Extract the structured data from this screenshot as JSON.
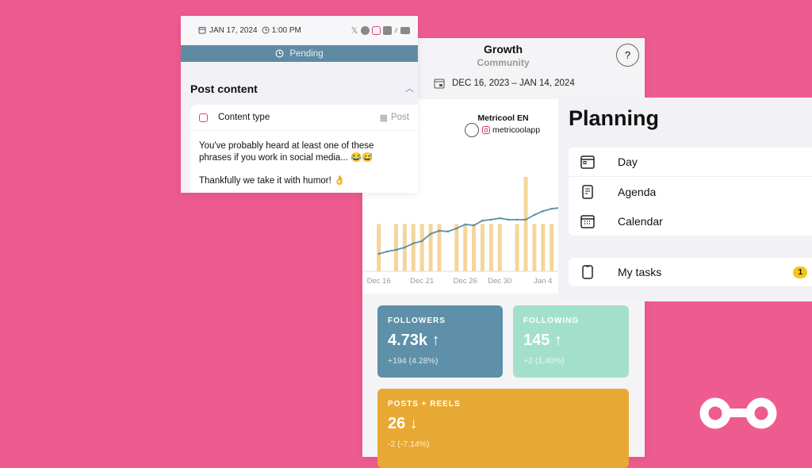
{
  "post": {
    "date": "JAN 17, 2024",
    "time": "1:00 PM",
    "networks": [
      "x-icon",
      "facebook-icon",
      "instagram-icon",
      "linkedin-icon",
      "tiktok-icon",
      "youtube-icon"
    ],
    "status": "Pending",
    "section_title": "Post content",
    "content_type_label": "Content type",
    "content_type_value": "Post",
    "text_line1": "You've probably heard at least one of these",
    "text_line2": "phrases if you work in social media... 😂😅",
    "text_line3": "Thankfully we take it with humor! 👌"
  },
  "growth": {
    "title": "Growth",
    "subtitle": "Community",
    "help": "?",
    "date_range": "DEC 16, 2023 – JAN 14, 2024",
    "account_name": "Metricool EN",
    "account_handle": "metricoolapp",
    "cards": [
      {
        "label": "FOLLOWERS",
        "value": "4.73k ↑",
        "change": "+194 (4.28%)",
        "color": "#5e90a9"
      },
      {
        "label": "FOLLOWING",
        "value": "145 ↑",
        "change": "+2 (1.40%)",
        "color": "#a3e0cc"
      },
      {
        "label": "POSTS + REELS",
        "value": "26 ↓",
        "change": "-2 (-7.14%)",
        "color": "#e8a934"
      }
    ]
  },
  "chart_data": {
    "type": "bar+line",
    "x_tick_labels": [
      "Dec 16",
      "Dec 21",
      "Dec 26",
      "Dec 30",
      "Jan 4"
    ],
    "bars": {
      "color": "#f5d59a",
      "dates": [
        "Dec 16",
        "Dec 18",
        "Dec 19",
        "Dec 20",
        "Dec 21",
        "Dec 22",
        "Dec 23",
        "Dec 25",
        "Dec 26",
        "Dec 27",
        "Dec 28",
        "Dec 29",
        "Dec 30",
        "Jan 1",
        "Jan 2",
        "Jan 3",
        "Jan 4",
        "Jan 5"
      ],
      "values": [
        1,
        1,
        1,
        1,
        1,
        1,
        1,
        1,
        1,
        1,
        1,
        1,
        1,
        1,
        2,
        1,
        1,
        1
      ]
    },
    "line": {
      "color": "#5b8fa8",
      "dates": [
        "Dec 16",
        "Dec 17",
        "Dec 18",
        "Dec 19",
        "Dec 20",
        "Dec 21",
        "Dec 22",
        "Dec 23",
        "Dec 24",
        "Dec 25",
        "Dec 26",
        "Dec 27",
        "Dec 28",
        "Dec 29",
        "Dec 30",
        "Dec 31",
        "Jan 1",
        "Jan 2",
        "Jan 3",
        "Jan 4",
        "Jan 5",
        "Jan 6"
      ],
      "values": [
        4536,
        4546,
        4553,
        4563,
        4580,
        4590,
        4620,
        4633,
        4630,
        4643,
        4660,
        4656,
        4676,
        4680,
        4686,
        4680,
        4680,
        4680,
        4700,
        4716,
        4726,
        4730
      ]
    },
    "grid": false,
    "legend": "none"
  },
  "planning": {
    "title": "Planning",
    "items": [
      {
        "label": "Day",
        "icon": "calendar-day-icon"
      },
      {
        "label": "Agenda",
        "icon": "agenda-icon"
      },
      {
        "label": "Calendar",
        "icon": "calendar-icon"
      }
    ],
    "tasks": {
      "label": "My tasks",
      "count": "1"
    }
  },
  "colors": {
    "background": "#ee5b8f",
    "pending": "#5e8ba3",
    "badge": "#f5c518"
  }
}
